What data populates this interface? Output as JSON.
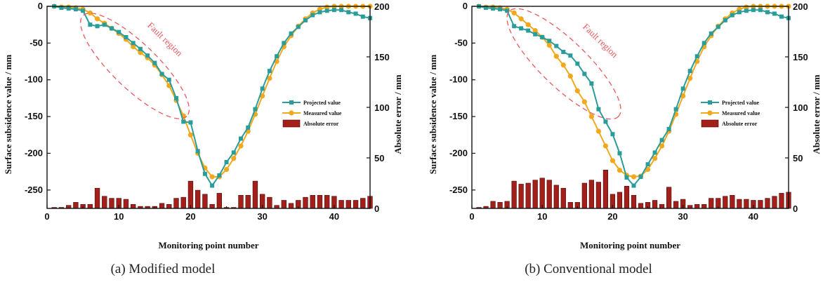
{
  "chart_data": [
    {
      "type": "bar+line",
      "caption": "(a) Modified model",
      "xlabel": "Monitoring point number",
      "ylabel_left": "Surface subsidence value / mm",
      "ylabel_right": "Absolute error / mm",
      "xlim": [
        0,
        45
      ],
      "ylim_left": [
        -275,
        0
      ],
      "ylim_right": [
        0,
        200
      ],
      "xticks": [
        0,
        10,
        20,
        30,
        40
      ],
      "yticks_left": [
        0,
        -50,
        -100,
        -150,
        -200,
        -250
      ],
      "yticks_right": [
        0,
        50,
        100,
        150,
        200
      ],
      "annotation": "Fault region",
      "legend": [
        "Projected value",
        "Measured value",
        "Absolute error"
      ],
      "colors": {
        "projected": "#2a9d9a",
        "measured": "#f2a81d",
        "error": "#a31f1a",
        "fault": "#e8585c"
      },
      "series": [
        {
          "name": "Projected value",
          "axis": "left",
          "x": [
            1,
            2,
            3,
            4,
            5,
            6,
            7,
            8,
            9,
            10,
            11,
            12,
            13,
            14,
            15,
            16,
            17,
            18,
            19,
            20,
            21,
            22,
            23,
            24,
            25,
            26,
            27,
            28,
            29,
            30,
            31,
            32,
            33,
            34,
            35,
            36,
            37,
            38,
            39,
            40,
            41,
            42,
            43,
            44,
            45
          ],
          "values": [
            0,
            -2,
            -3,
            -4,
            -6,
            -25,
            -27,
            -25,
            -30,
            -35,
            -42,
            -50,
            -58,
            -67,
            -77,
            -92,
            -100,
            -125,
            -157,
            -158,
            -197,
            -228,
            -244,
            -230,
            -212,
            -199,
            -180,
            -165,
            -140,
            -112,
            -88,
            -68,
            -50,
            -37,
            -28,
            -19,
            -12,
            -8,
            -6,
            -5,
            -5,
            -8,
            -10,
            -14,
            -16
          ]
        },
        {
          "name": "Measured value",
          "axis": "left",
          "x": [
            1,
            2,
            3,
            4,
            5,
            6,
            7,
            8,
            9,
            10,
            11,
            12,
            13,
            14,
            15,
            16,
            17,
            18,
            19,
            20,
            21,
            22,
            23,
            24,
            25,
            26,
            27,
            28,
            29,
            30,
            31,
            32,
            33,
            34,
            35,
            36,
            37,
            38,
            39,
            40,
            41,
            42,
            43,
            44,
            45
          ],
          "values": [
            0,
            -1,
            -1,
            -2,
            -4,
            -9,
            -17,
            -23,
            -30,
            -37,
            -45,
            -55,
            -63,
            -70,
            -80,
            -93,
            -108,
            -128,
            -149,
            -175,
            -200,
            -220,
            -232,
            -232,
            -222,
            -207,
            -190,
            -170,
            -147,
            -122,
            -98,
            -75,
            -55,
            -40,
            -27,
            -17,
            -9,
            -4,
            -1,
            0,
            0,
            0,
            0,
            0,
            0
          ]
        },
        {
          "name": "Absolute error",
          "axis": "right",
          "x": [
            1,
            2,
            3,
            4,
            5,
            6,
            7,
            8,
            9,
            10,
            11,
            12,
            13,
            14,
            15,
            16,
            17,
            18,
            19,
            20,
            21,
            22,
            23,
            24,
            25,
            26,
            27,
            28,
            29,
            30,
            31,
            32,
            33,
            34,
            35,
            36,
            37,
            38,
            39,
            40,
            41,
            42,
            43,
            44,
            45
          ],
          "values": [
            1,
            1,
            3,
            6,
            4,
            4,
            20,
            12,
            10,
            10,
            9,
            4,
            2,
            2,
            2,
            5,
            4,
            10,
            11,
            27,
            18,
            14,
            4,
            15,
            1,
            1,
            13,
            13,
            27,
            14,
            11,
            3,
            8,
            5,
            8,
            11,
            13,
            13,
            13,
            12,
            8,
            8,
            8,
            10,
            12
          ]
        }
      ]
    },
    {
      "type": "bar+line",
      "caption": "(b) Conventional model",
      "xlabel": "Monitoring point number",
      "ylabel_left": "Surface subsidence value / mm",
      "ylabel_right": "Absolute error / mm",
      "xlim": [
        0,
        45
      ],
      "ylim_left": [
        -275,
        0
      ],
      "ylim_right": [
        0,
        200
      ],
      "xticks": [
        0,
        10,
        20,
        30,
        40
      ],
      "yticks_left": [
        0,
        -50,
        -100,
        -150,
        -200,
        -250
      ],
      "yticks_right": [
        0,
        50,
        100,
        150,
        200
      ],
      "annotation": "Fault region",
      "legend": [
        "Projected value",
        "Measured value",
        "Absolute error"
      ],
      "colors": {
        "projected": "#2a9d9a",
        "measured": "#f2a81d",
        "error": "#a31f1a",
        "fault": "#e8585c"
      },
      "series": [
        {
          "name": "Projected value",
          "axis": "left",
          "x": [
            1,
            2,
            3,
            4,
            5,
            6,
            7,
            8,
            9,
            10,
            11,
            12,
            13,
            14,
            15,
            16,
            17,
            18,
            19,
            20,
            21,
            22,
            23,
            24,
            25,
            26,
            27,
            28,
            29,
            30,
            31,
            32,
            33,
            34,
            35,
            36,
            37,
            38,
            39,
            40,
            41,
            42,
            43,
            44,
            45
          ],
          "values": [
            0,
            -2,
            -3,
            -4,
            -6,
            -27,
            -30,
            -33,
            -38,
            -42,
            -47,
            -54,
            -62,
            -67,
            -78,
            -92,
            -105,
            -140,
            -157,
            -174,
            -200,
            -233,
            -244,
            -232,
            -215,
            -199,
            -182,
            -167,
            -140,
            -112,
            -88,
            -68,
            -50,
            -37,
            -28,
            -19,
            -12,
            -8,
            -6,
            -5,
            -5,
            -8,
            -10,
            -14,
            -16
          ]
        },
        {
          "name": "Measured value",
          "axis": "left",
          "x": [
            1,
            2,
            3,
            4,
            5,
            6,
            7,
            8,
            9,
            10,
            11,
            12,
            13,
            14,
            15,
            16,
            17,
            18,
            19,
            20,
            21,
            22,
            23,
            24,
            25,
            26,
            27,
            28,
            29,
            30,
            31,
            32,
            33,
            34,
            35,
            36,
            37,
            38,
            39,
            40,
            41,
            42,
            43,
            44,
            45
          ],
          "values": [
            0,
            -1,
            -1,
            -2,
            -4,
            -9,
            -17,
            -25,
            -33,
            -42,
            -53,
            -68,
            -80,
            -95,
            -115,
            -130,
            -150,
            -170,
            -190,
            -210,
            -223,
            -230,
            -232,
            -231,
            -222,
            -207,
            -190,
            -170,
            -147,
            -122,
            -98,
            -75,
            -55,
            -40,
            -27,
            -17,
            -9,
            -4,
            -1,
            0,
            0,
            0,
            0,
            0,
            0
          ]
        },
        {
          "name": "Absolute error",
          "axis": "right",
          "x": [
            1,
            2,
            3,
            4,
            5,
            6,
            7,
            8,
            9,
            10,
            11,
            12,
            13,
            14,
            15,
            16,
            17,
            18,
            19,
            20,
            21,
            22,
            23,
            24,
            25,
            26,
            27,
            28,
            29,
            30,
            31,
            32,
            33,
            34,
            35,
            36,
            37,
            38,
            39,
            40,
            41,
            42,
            43,
            44,
            45
          ],
          "values": [
            1,
            2,
            7,
            6,
            7,
            27,
            24,
            25,
            28,
            30,
            28,
            23,
            20,
            6,
            6,
            25,
            28,
            26,
            38,
            14,
            16,
            22,
            13,
            5,
            6,
            8,
            4,
            21,
            7,
            9,
            3,
            4,
            4,
            10,
            10,
            12,
            13,
            9,
            9,
            8,
            8,
            10,
            12,
            15,
            16
          ]
        }
      ]
    }
  ]
}
